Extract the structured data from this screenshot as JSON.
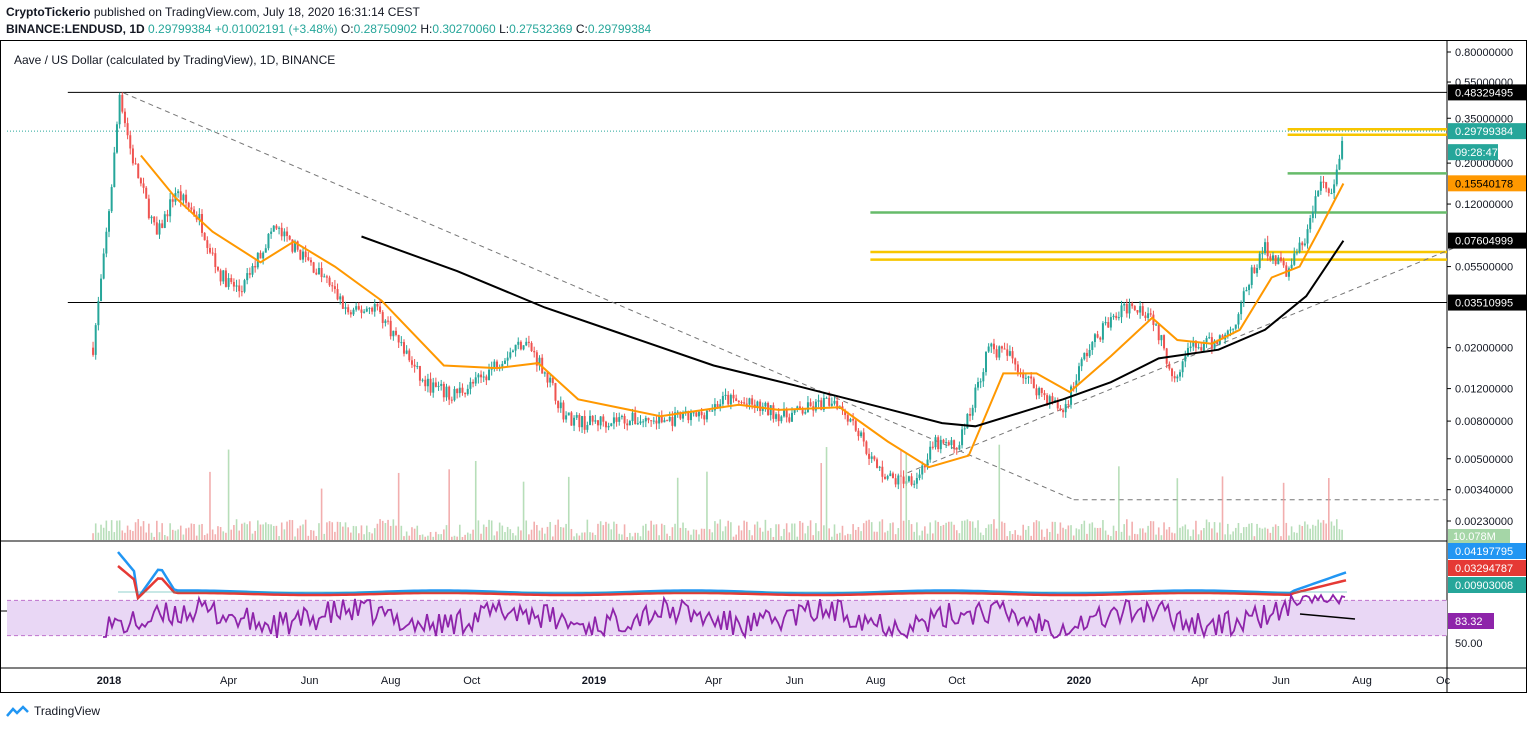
{
  "header": {
    "publisher": "CryptoTickerio",
    "published_text": "published on TradingView.com, July 18, 2020 16:31:14 CEST",
    "symbol": "BINANCE:LENDUSD, 1D",
    "last": "0.29799384",
    "change": "+0.01002191 (+3.48%)",
    "open_label": "O:",
    "open": "0.28750902",
    "high_label": "H:",
    "high": "0.30270060",
    "low_label": "L:",
    "low": "0.27532369",
    "close_label": "C:",
    "close": "0.29799384"
  },
  "chart_title": "Aave / US Dollar (calculated by TradingView), 1D, BINANCE",
  "footer": {
    "brand": "TradingView"
  },
  "colors": {
    "up": "#26a69a",
    "down": "#ef5350",
    "ma_short": "#ff9800",
    "ma_long": "#000000",
    "yellow_zone": "#f7c600",
    "green_level": "#66bb6a",
    "rsi": "#8e24aa",
    "rsi_band": "#e9d7f5",
    "macd_line": "#2196f3",
    "macd_signal": "#e53935"
  },
  "chart_data": {
    "type": "candlestick",
    "scale": "log",
    "x_ticks": [
      "2018",
      "Apr",
      "Jun",
      "Aug",
      "Oct",
      "2019",
      "Apr",
      "Jun",
      "Aug",
      "Oct",
      "2020",
      "Apr",
      "Jun",
      "Aug",
      "Oc"
    ],
    "y_ticks": [
      "0.80000000",
      "0.55000000",
      "0.35000000",
      "0.20000000",
      "0.12000000",
      "0.05500000",
      "0.02000000",
      "0.01200000",
      "0.00800000",
      "0.00500000",
      "0.00340000",
      "0.00230000"
    ],
    "price_tags": [
      {
        "label": "0.48329495",
        "kind": "level"
      },
      {
        "label": "0.29799384",
        "kind": "last"
      },
      {
        "label": "09:28:47",
        "kind": "countdown"
      },
      {
        "label": "0.15540178",
        "kind": "ma_short"
      },
      {
        "label": "0.07604999",
        "kind": "ma_long"
      },
      {
        "label": "0.03510995",
        "kind": "level"
      }
    ],
    "volume_tag": "10.078M",
    "price_path": [
      [
        "2017-12-20",
        0.02
      ],
      [
        "2017-12-28",
        0.06
      ],
      [
        "2018-01-04",
        0.18
      ],
      [
        "2018-01-09",
        0.48
      ],
      [
        "2018-01-18",
        0.22
      ],
      [
        "2018-02-06",
        0.08
      ],
      [
        "2018-02-20",
        0.14
      ],
      [
        "2018-03-10",
        0.1
      ],
      [
        "2018-03-25",
        0.05
      ],
      [
        "2018-04-10",
        0.04
      ],
      [
        "2018-05-05",
        0.09
      ],
      [
        "2018-05-25",
        0.065
      ],
      [
        "2018-06-15",
        0.045
      ],
      [
        "2018-07-01",
        0.03
      ],
      [
        "2018-07-20",
        0.034
      ],
      [
        "2018-08-10",
        0.02
      ],
      [
        "2018-08-25",
        0.013
      ],
      [
        "2018-09-15",
        0.011
      ],
      [
        "2018-10-05",
        0.013
      ],
      [
        "2018-10-25",
        0.018
      ],
      [
        "2018-11-10",
        0.022
      ],
      [
        "2018-11-25",
        0.015
      ],
      [
        "2018-12-10",
        0.0085
      ],
      [
        "2018-12-25",
        0.0078
      ],
      [
        "2019-01-20",
        0.0082
      ],
      [
        "2019-02-20",
        0.008
      ],
      [
        "2019-03-20",
        0.0085
      ],
      [
        "2019-04-10",
        0.0105
      ],
      [
        "2019-05-05",
        0.0095
      ],
      [
        "2019-05-25",
        0.0085
      ],
      [
        "2019-06-15",
        0.0095
      ],
      [
        "2019-07-01",
        0.0105
      ],
      [
        "2019-07-15",
        0.008
      ],
      [
        "2019-08-01",
        0.0045
      ],
      [
        "2019-08-15",
        0.0038
      ],
      [
        "2019-09-01",
        0.004
      ],
      [
        "2019-09-15",
        0.006
      ],
      [
        "2019-10-01",
        0.0058
      ],
      [
        "2019-10-10",
        0.0085
      ],
      [
        "2019-10-25",
        0.02
      ],
      [
        "2019-11-10",
        0.018
      ],
      [
        "2019-11-25",
        0.013
      ],
      [
        "2019-12-20",
        0.009
      ],
      [
        "2020-01-05",
        0.018
      ],
      [
        "2020-01-20",
        0.026
      ],
      [
        "2020-02-10",
        0.035
      ],
      [
        "2020-02-25",
        0.03
      ],
      [
        "2020-03-12",
        0.014
      ],
      [
        "2020-03-25",
        0.02
      ],
      [
        "2020-04-10",
        0.021
      ],
      [
        "2020-04-25",
        0.025
      ],
      [
        "2020-05-10",
        0.05
      ],
      [
        "2020-05-20",
        0.07
      ],
      [
        "2020-06-05",
        0.052
      ],
      [
        "2020-06-20",
        0.08
      ],
      [
        "2020-07-01",
        0.16
      ],
      [
        "2020-07-10",
        0.13
      ],
      [
        "2020-07-18",
        0.298
      ]
    ],
    "ma_short_path": [
      [
        "2018-01-25",
        0.22
      ],
      [
        "2018-02-20",
        0.13
      ],
      [
        "2018-03-20",
        0.085
      ],
      [
        "2018-04-25",
        0.058
      ],
      [
        "2018-05-20",
        0.075
      ],
      [
        "2018-06-20",
        0.055
      ],
      [
        "2018-07-25",
        0.036
      ],
      [
        "2018-09-10",
        0.016
      ],
      [
        "2018-10-20",
        0.0155
      ],
      [
        "2018-11-20",
        0.0165
      ],
      [
        "2018-12-20",
        0.0105
      ],
      [
        "2019-02-20",
        0.0085
      ],
      [
        "2019-04-20",
        0.0098
      ],
      [
        "2019-05-20",
        0.0092
      ],
      [
        "2019-07-05",
        0.0095
      ],
      [
        "2019-08-10",
        0.0062
      ],
      [
        "2019-09-10",
        0.0045
      ],
      [
        "2019-10-10",
        0.0052
      ],
      [
        "2019-11-05",
        0.0145
      ],
      [
        "2019-11-30",
        0.0145
      ],
      [
        "2019-12-25",
        0.0115
      ],
      [
        "2020-01-25",
        0.018
      ],
      [
        "2020-02-25",
        0.029
      ],
      [
        "2020-03-15",
        0.022
      ],
      [
        "2020-04-10",
        0.021
      ],
      [
        "2020-05-01",
        0.025
      ],
      [
        "2020-05-25",
        0.048
      ],
      [
        "2020-06-15",
        0.055
      ],
      [
        "2020-07-01",
        0.09
      ],
      [
        "2020-07-18",
        0.155
      ]
    ],
    "ma_long_path": [
      [
        "2018-07-10",
        0.08
      ],
      [
        "2018-09-20",
        0.052
      ],
      [
        "2018-11-25",
        0.033
      ],
      [
        "2019-01-20",
        0.024
      ],
      [
        "2019-04-01",
        0.016
      ],
      [
        "2019-06-01",
        0.0125
      ],
      [
        "2019-08-05",
        0.0095
      ],
      [
        "2019-09-20",
        0.0078
      ],
      [
        "2019-10-15",
        0.0075
      ],
      [
        "2019-11-20",
        0.009
      ],
      [
        "2019-12-20",
        0.0105
      ],
      [
        "2020-01-25",
        0.013
      ],
      [
        "2020-03-01",
        0.0175
      ],
      [
        "2020-04-15",
        0.0195
      ],
      [
        "2020-05-20",
        0.025
      ],
      [
        "2020-06-20",
        0.038
      ],
      [
        "2020-07-18",
        0.076
      ]
    ],
    "horizontal_levels": [
      {
        "value": 0.48329495,
        "color": "#000000",
        "from": "2017-12-01",
        "to": "end"
      },
      {
        "value": 0.03510995,
        "color": "#000000",
        "from": "2017-12-01",
        "to": "end"
      },
      {
        "value": 0.305,
        "color": "#f7c600",
        "from": "2020-06-06",
        "to": "end"
      },
      {
        "value": 0.285,
        "color": "#f7c600",
        "from": "2020-06-06",
        "to": "end"
      },
      {
        "value": 0.176,
        "color": "#66bb6a",
        "from": "2020-06-06",
        "to": "end"
      },
      {
        "value": 0.108,
        "color": "#66bb6a",
        "from": "2019-07-28",
        "to": "end"
      },
      {
        "value": 0.066,
        "color": "#f7c600",
        "from": "2019-07-28",
        "to": "end"
      },
      {
        "value": 0.06,
        "color": "#f7c600",
        "from": "2019-07-28",
        "to": "end"
      }
    ],
    "trendlines": [
      {
        "from": [
          "2018-01-12",
          0.48
        ],
        "to": [
          "2019-12-28",
          0.003
        ],
        "dashed": true
      },
      {
        "from": [
          "2019-12-28",
          0.003
        ],
        "to": [
          "2020-12-31",
          0.003
        ],
        "dashed": true
      },
      {
        "from": [
          "2019-08-25",
          0.0042
        ],
        "to": [
          "2020-10-30",
          0.08
        ],
        "dashed": true
      },
      {
        "from": [
          "2020-06-15",
          0.93
        ],
        "to": [
          "2020-07-24",
          0.89
        ],
        "dashed": false,
        "pane": "rsi"
      }
    ],
    "macd": {
      "line": "0.04197795",
      "signal": "0.03294787",
      "histogram": "0.00903008"
    },
    "rsi": {
      "value": "83.32",
      "levels": [
        70,
        30
      ],
      "tick": "50.00"
    }
  }
}
